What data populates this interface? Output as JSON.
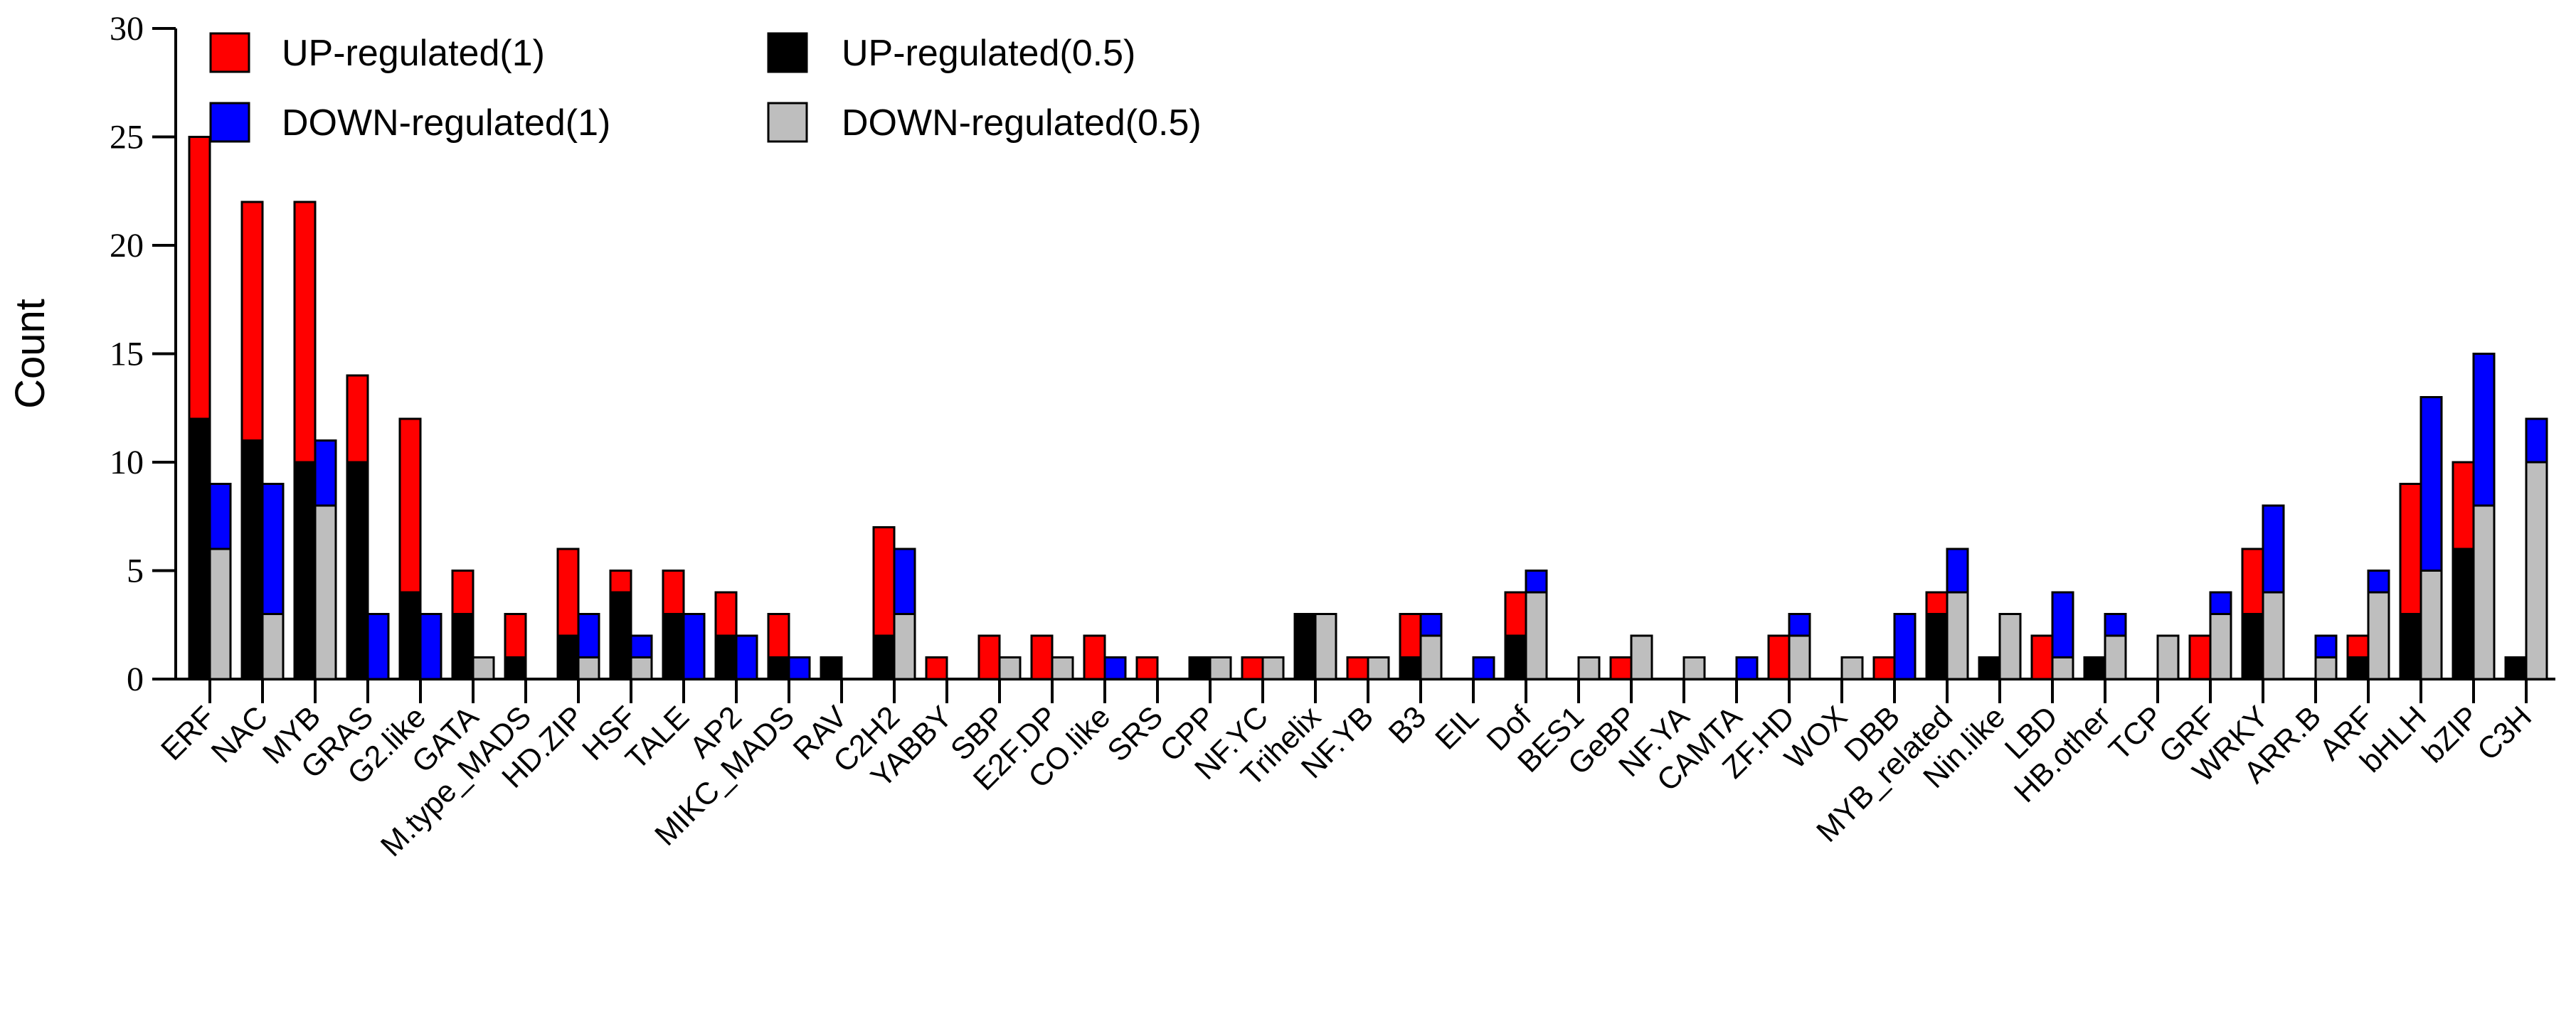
{
  "chart_data": {
    "type": "bar",
    "title": "",
    "xlabel": "",
    "ylabel": "Count",
    "ylim": [
      0,
      30
    ],
    "yticks": [
      0,
      5,
      10,
      15,
      20,
      25,
      30
    ],
    "grid": false,
    "legend_position": "top-left-inside",
    "legend": [
      {
        "label": "UP-regulated(1)",
        "color": "#ff0000",
        "column": 0,
        "row": 0
      },
      {
        "label": "DOWN-regulated(1)",
        "color": "#0000ff",
        "column": 0,
        "row": 1
      },
      {
        "label": "UP-regulated(0.5)",
        "color": "#000000",
        "column": 1,
        "row": 0
      },
      {
        "label": "DOWN-regulated(0.5)",
        "color": "#bebebe",
        "column": 1,
        "row": 1
      }
    ],
    "categories": [
      "ERF",
      "NAC",
      "MYB",
      "GRAS",
      "G2.like",
      "GATA",
      "M.type_MADS",
      "HD.ZIP",
      "HSF",
      "TALE",
      "AP2",
      "MIKC_MADS",
      "RAV",
      "C2H2",
      "YABBY",
      "SBP",
      "E2F.DP",
      "CO.like",
      "SRS",
      "CPP",
      "NF.YC",
      "Trihelix",
      "NF.YB",
      "B3",
      "EIL",
      "Dof",
      "BES1",
      "GeBP",
      "NF.YA",
      "CAMTA",
      "ZF.HD",
      "WOX",
      "DBB",
      "MYB_related",
      "Nin.like",
      "LBD",
      "HB.other",
      "TCP",
      "GRF",
      "WRKY",
      "ARR.B",
      "ARF",
      "bHLH",
      "bZIP",
      "C3H"
    ],
    "stacks": [
      {
        "name": "UP",
        "order": [
          "UP-regulated(0.5)",
          "UP-regulated(1)"
        ]
      },
      {
        "name": "DOWN",
        "order": [
          "DOWN-regulated(0.5)",
          "DOWN-regulated(1)"
        ]
      }
    ],
    "series": [
      {
        "name": "UP-regulated(0.5)",
        "stack": "UP",
        "color": "#000000",
        "values": [
          12,
          11,
          10,
          10,
          4,
          3,
          1,
          2,
          4,
          3,
          2,
          1,
          1,
          2,
          0,
          0,
          0,
          0,
          0,
          1,
          0,
          3,
          0,
          1,
          0,
          2,
          0,
          0,
          0,
          0,
          0,
          0,
          0,
          3,
          1,
          0,
          1,
          0,
          0,
          3,
          0,
          1,
          3,
          6,
          1
        ]
      },
      {
        "name": "UP-regulated(1)",
        "stack": "UP",
        "color": "#ff0000",
        "values": [
          13,
          11,
          12,
          4,
          8,
          2,
          2,
          4,
          1,
          2,
          2,
          2,
          0,
          5,
          1,
          2,
          2,
          2,
          1,
          0,
          1,
          0,
          1,
          2,
          0,
          2,
          0,
          1,
          0,
          0,
          2,
          0,
          1,
          1,
          0,
          2,
          0,
          0,
          2,
          3,
          0,
          1,
          6,
          4,
          0
        ]
      },
      {
        "name": "DOWN-regulated(0.5)",
        "stack": "DOWN",
        "color": "#bebebe",
        "values": [
          6,
          3,
          8,
          0,
          0,
          1,
          0,
          1,
          1,
          0,
          0,
          0,
          0,
          3,
          0,
          1,
          1,
          0,
          0,
          1,
          1,
          3,
          1,
          2,
          0,
          4,
          1,
          2,
          1,
          0,
          2,
          1,
          0,
          4,
          3,
          1,
          2,
          2,
          3,
          4,
          1,
          4,
          5,
          8,
          10
        ]
      },
      {
        "name": "DOWN-regulated(1)",
        "stack": "DOWN",
        "color": "#0000ff",
        "values": [
          3,
          6,
          3,
          3,
          3,
          0,
          0,
          2,
          1,
          3,
          2,
          1,
          0,
          3,
          0,
          0,
          0,
          1,
          0,
          0,
          0,
          0,
          0,
          1,
          1,
          1,
          0,
          0,
          0,
          1,
          1,
          0,
          3,
          2,
          0,
          3,
          1,
          0,
          1,
          4,
          1,
          1,
          8,
          7,
          2
        ]
      }
    ]
  }
}
